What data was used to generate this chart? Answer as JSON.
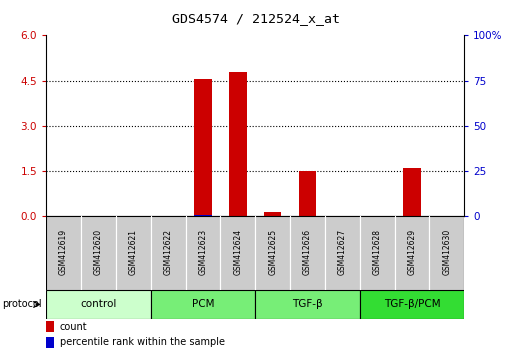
{
  "title": "GDS4574 / 212524_x_at",
  "samples": [
    "GSM412619",
    "GSM412620",
    "GSM412621",
    "GSM412622",
    "GSM412623",
    "GSM412624",
    "GSM412625",
    "GSM412626",
    "GSM412627",
    "GSM412628",
    "GSM412629",
    "GSM412630"
  ],
  "count_values": [
    0,
    0,
    0,
    0,
    4.55,
    4.8,
    0.12,
    1.5,
    0,
    0,
    1.6,
    0
  ],
  "percentile_values": [
    0,
    0,
    0,
    0,
    0.25,
    0.2,
    0.0,
    0.15,
    0,
    0,
    0.1,
    0
  ],
  "left_ylim": [
    0,
    6
  ],
  "left_yticks": [
    0,
    1.5,
    3,
    4.5,
    6
  ],
  "right_ylim": [
    0,
    100
  ],
  "right_yticks": [
    0,
    25,
    50,
    75,
    100
  ],
  "right_yticklabels": [
    "0",
    "25",
    "50",
    "75",
    "100%"
  ],
  "count_color": "#cc0000",
  "percentile_color": "#0000cc",
  "bar_width": 0.5,
  "group_data": [
    {
      "label": "control",
      "start": 0,
      "end": 3,
      "color": "#ccffcc"
    },
    {
      "label": "PCM",
      "start": 3,
      "end": 6,
      "color": "#77ee77"
    },
    {
      "label": "TGF-β",
      "start": 6,
      "end": 9,
      "color": "#77ee77"
    },
    {
      "label": "TGF-β/PCM",
      "start": 9,
      "end": 12,
      "color": "#33dd33"
    }
  ],
  "sample_box_color": "#cccccc",
  "protocol_label": "protocol",
  "legend_count": "count",
  "legend_percentile": "percentile rank within the sample"
}
